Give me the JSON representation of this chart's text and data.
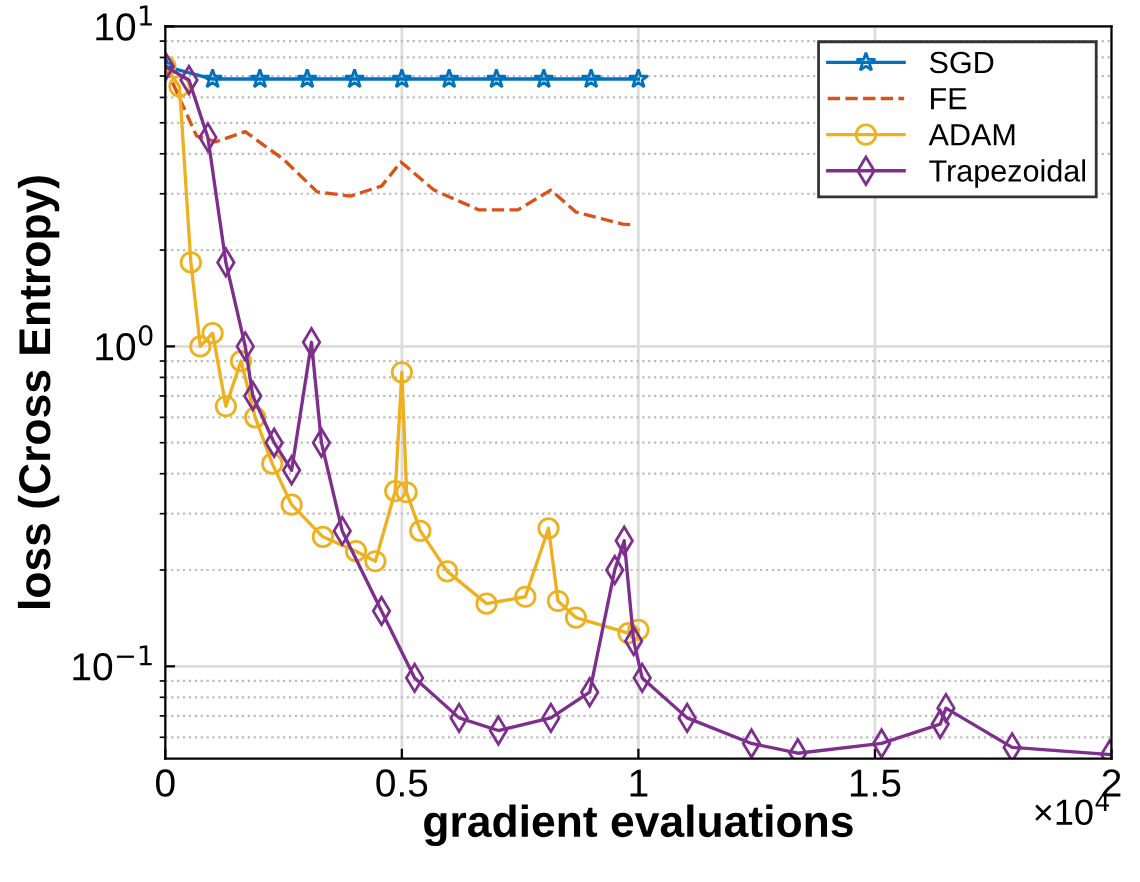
{
  "chart_data": {
    "type": "line",
    "xlabel": "gradient evaluations",
    "ylabel": "loss (Cross Entropy)",
    "log": "y",
    "grid": true,
    "legend": "top right",
    "xlim": [
      0,
      2
    ],
    "xticks": [
      0,
      0.5,
      1,
      1.5,
      2
    ],
    "ylim": [
      0.0515,
      10
    ],
    "yticks": [
      {
        "value": 0.1,
        "label": "10$^{−1}$"
      },
      {
        "value": 1,
        "label": "10$^{0}$"
      },
      {
        "value": 10,
        "label": "10$^{1}$"
      }
    ],
    "annotations": [
      "×10$^{4}$"
    ],
    "series": [
      {
        "name": "SGD",
        "color": "#0072bd",
        "marker": "star",
        "line_style": "solid",
        "x": [
          0,
          0.1,
          0.2,
          0.3,
          0.4,
          0.5,
          0.6,
          0.7,
          0.8,
          0.9,
          1.0
        ],
        "values": [
          7.5,
          6.85,
          6.85,
          6.85,
          6.85,
          6.85,
          6.85,
          6.85,
          6.85,
          6.85,
          6.85
        ]
      },
      {
        "name": "FE",
        "color": "#d95319",
        "marker": "none",
        "line_style": "dashed",
        "x": [
          0,
          0.066,
          0.107,
          0.169,
          0.251,
          0.321,
          0.391,
          0.457,
          0.498,
          0.568,
          0.663,
          0.745,
          0.815,
          0.868,
          0.967,
          0.99
        ],
        "values": [
          7.5,
          4.55,
          4.36,
          4.69,
          3.83,
          3.04,
          2.95,
          3.17,
          3.77,
          3.08,
          2.67,
          2.67,
          3.08,
          2.63,
          2.41,
          2.4
        ]
      },
      {
        "name": "ADAM",
        "color": "#edb120",
        "marker": "circle",
        "line_style": "solid",
        "x": [
          0,
          0.03,
          0.054,
          0.074,
          0.1,
          0.128,
          0.16,
          0.19,
          0.226,
          0.267,
          0.333,
          0.403,
          0.444,
          0.486,
          0.5,
          0.51,
          0.539,
          0.596,
          0.679,
          0.761,
          0.81,
          0.83,
          0.868,
          0.979,
          1.0
        ],
        "values": [
          7.5,
          6.5,
          1.83,
          1.0,
          1.1,
          0.65,
          0.9,
          0.6,
          0.43,
          0.32,
          0.254,
          0.229,
          0.213,
          0.353,
          0.83,
          0.35,
          0.265,
          0.198,
          0.157,
          0.165,
          0.27,
          0.16,
          0.142,
          0.127,
          0.13
        ]
      },
      {
        "name": "Trapezoidal",
        "color": "#7e2f8e",
        "marker": "diamond",
        "line_style": "solid",
        "x": [
          0,
          0.05,
          0.09,
          0.128,
          0.169,
          0.185,
          0.23,
          0.267,
          0.309,
          0.33,
          0.374,
          0.457,
          0.527,
          0.621,
          0.704,
          0.815,
          0.897,
          0.95,
          0.97,
          0.99,
          1.008,
          1.103,
          1.239,
          1.337,
          1.514,
          1.638,
          1.65,
          1.79,
          1.996
        ],
        "values": [
          7.5,
          6.8,
          4.5,
          1.83,
          1.0,
          0.7,
          0.5,
          0.41,
          1.03,
          0.5,
          0.265,
          0.149,
          0.092,
          0.069,
          0.063,
          0.069,
          0.083,
          0.2,
          0.247,
          0.12,
          0.092,
          0.069,
          0.0574,
          0.0535,
          0.0574,
          0.066,
          0.074,
          0.0558,
          0.053
        ]
      }
    ]
  }
}
